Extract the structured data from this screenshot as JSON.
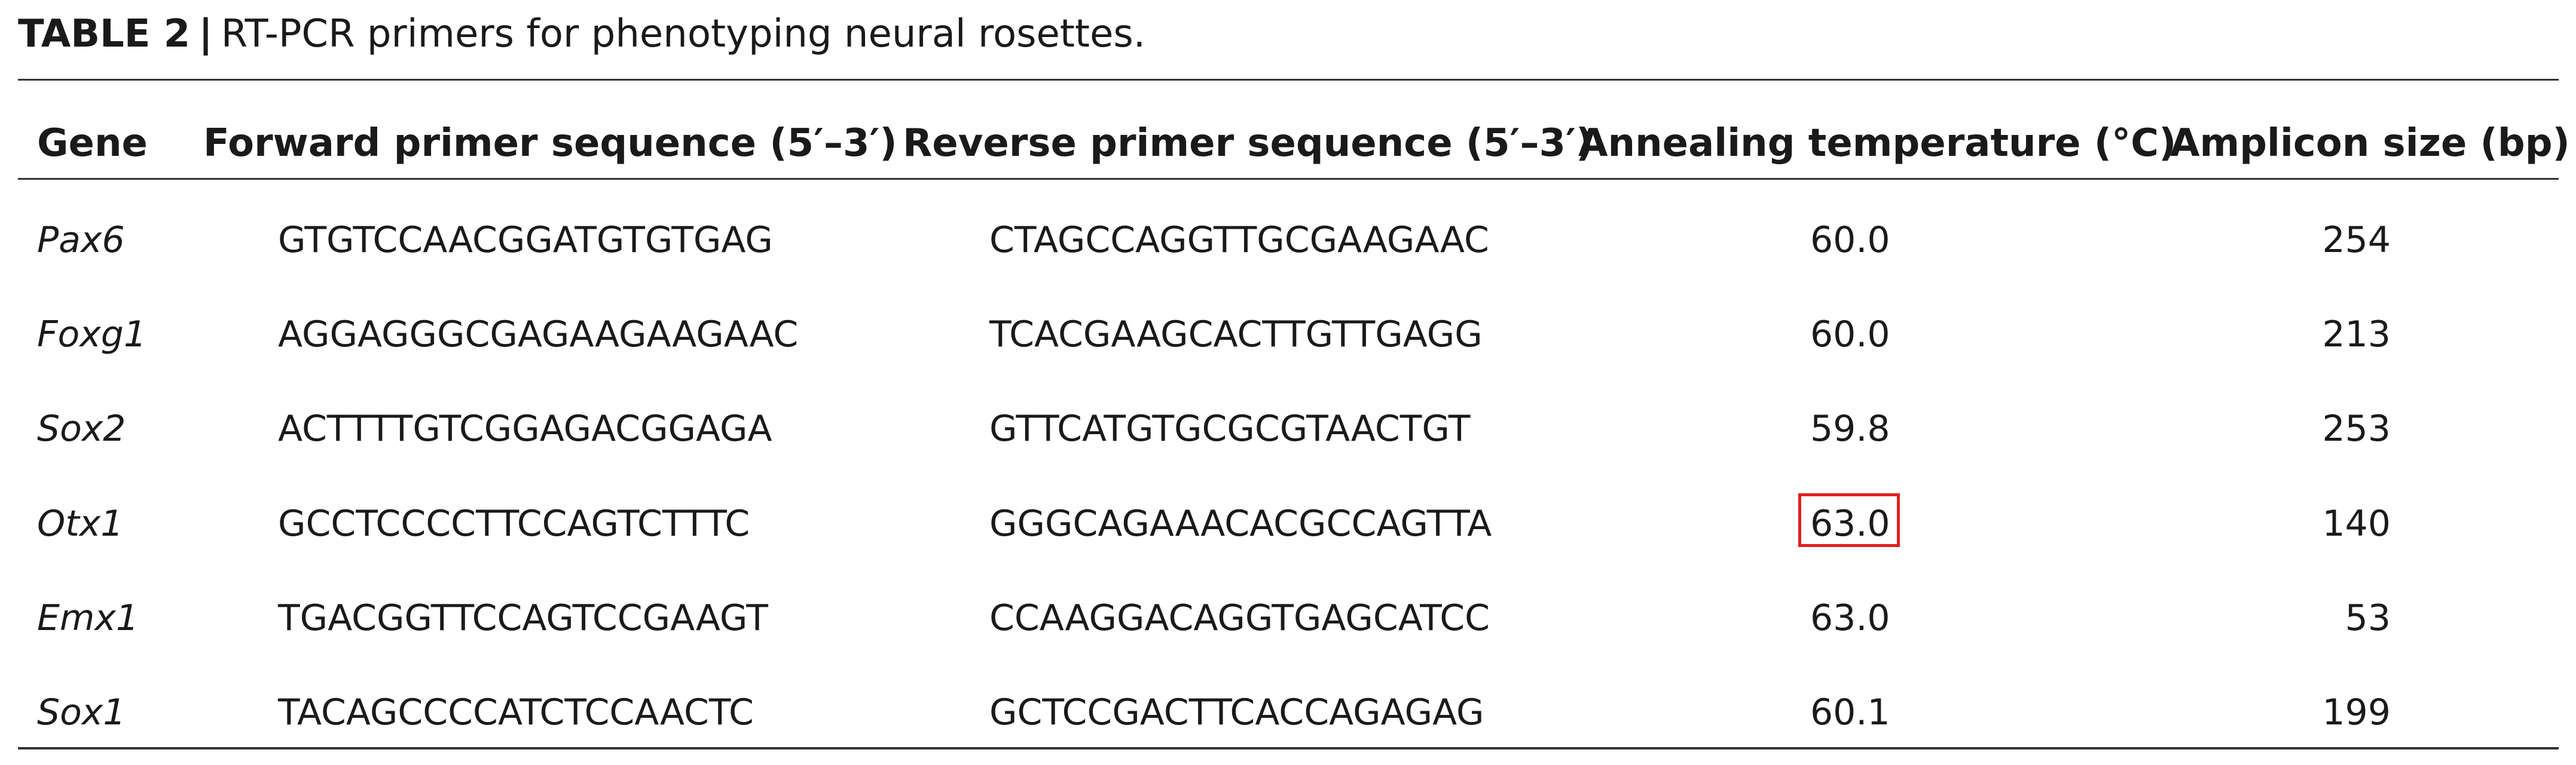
{
  "caption": {
    "label": "TABLE 2",
    "separator": "|",
    "text": "RT-PCR primers for phenotyping neural rosettes."
  },
  "columns": [
    "Gene",
    "Forward primer sequence (5′–3′)",
    "Reverse primer sequence (5′–3′)",
    "Annealing temperature (°C)",
    "Amplicon size (bp)"
  ],
  "rows": [
    {
      "gene": "Pax6",
      "forward": "GTGTCCAACGGATGTGTGAG",
      "reverse": "CTAGCCAGGTTGCGAAGAAC",
      "temp": "60.0",
      "size": "254"
    },
    {
      "gene": "Foxg1",
      "forward": "AGGAGGGCGAGAAGAAGAAC",
      "reverse": "TCACGAAGCACTTGTTGAGG",
      "temp": "60.0",
      "size": "213"
    },
    {
      "gene": "Sox2",
      "forward": "ACTTTTGTCGGAGACGGAGA",
      "reverse": "GTTCATGTGCGCGTAACTGT",
      "temp": "59.8",
      "size": "253"
    },
    {
      "gene": "Otx1",
      "forward": "GCCTCCCCTTCCAGTCTTTC",
      "reverse": "GGGCAGAAACACGCCAGTTA",
      "temp": "63.0",
      "size": "140"
    },
    {
      "gene": "Emx1",
      "forward": "TGACGGTTCCAGTCCGAAGT",
      "reverse": "CCAAGGACAGGTGAGCATCC",
      "temp": "63.0",
      "size": "53"
    },
    {
      "gene": "Sox1",
      "forward": "TACAGCCCCATCTCCAACTC",
      "reverse": "GCTCCGACTTCACCAGAGAG",
      "temp": "60.1",
      "size": "199"
    }
  ],
  "highlight_color": "#e02020"
}
